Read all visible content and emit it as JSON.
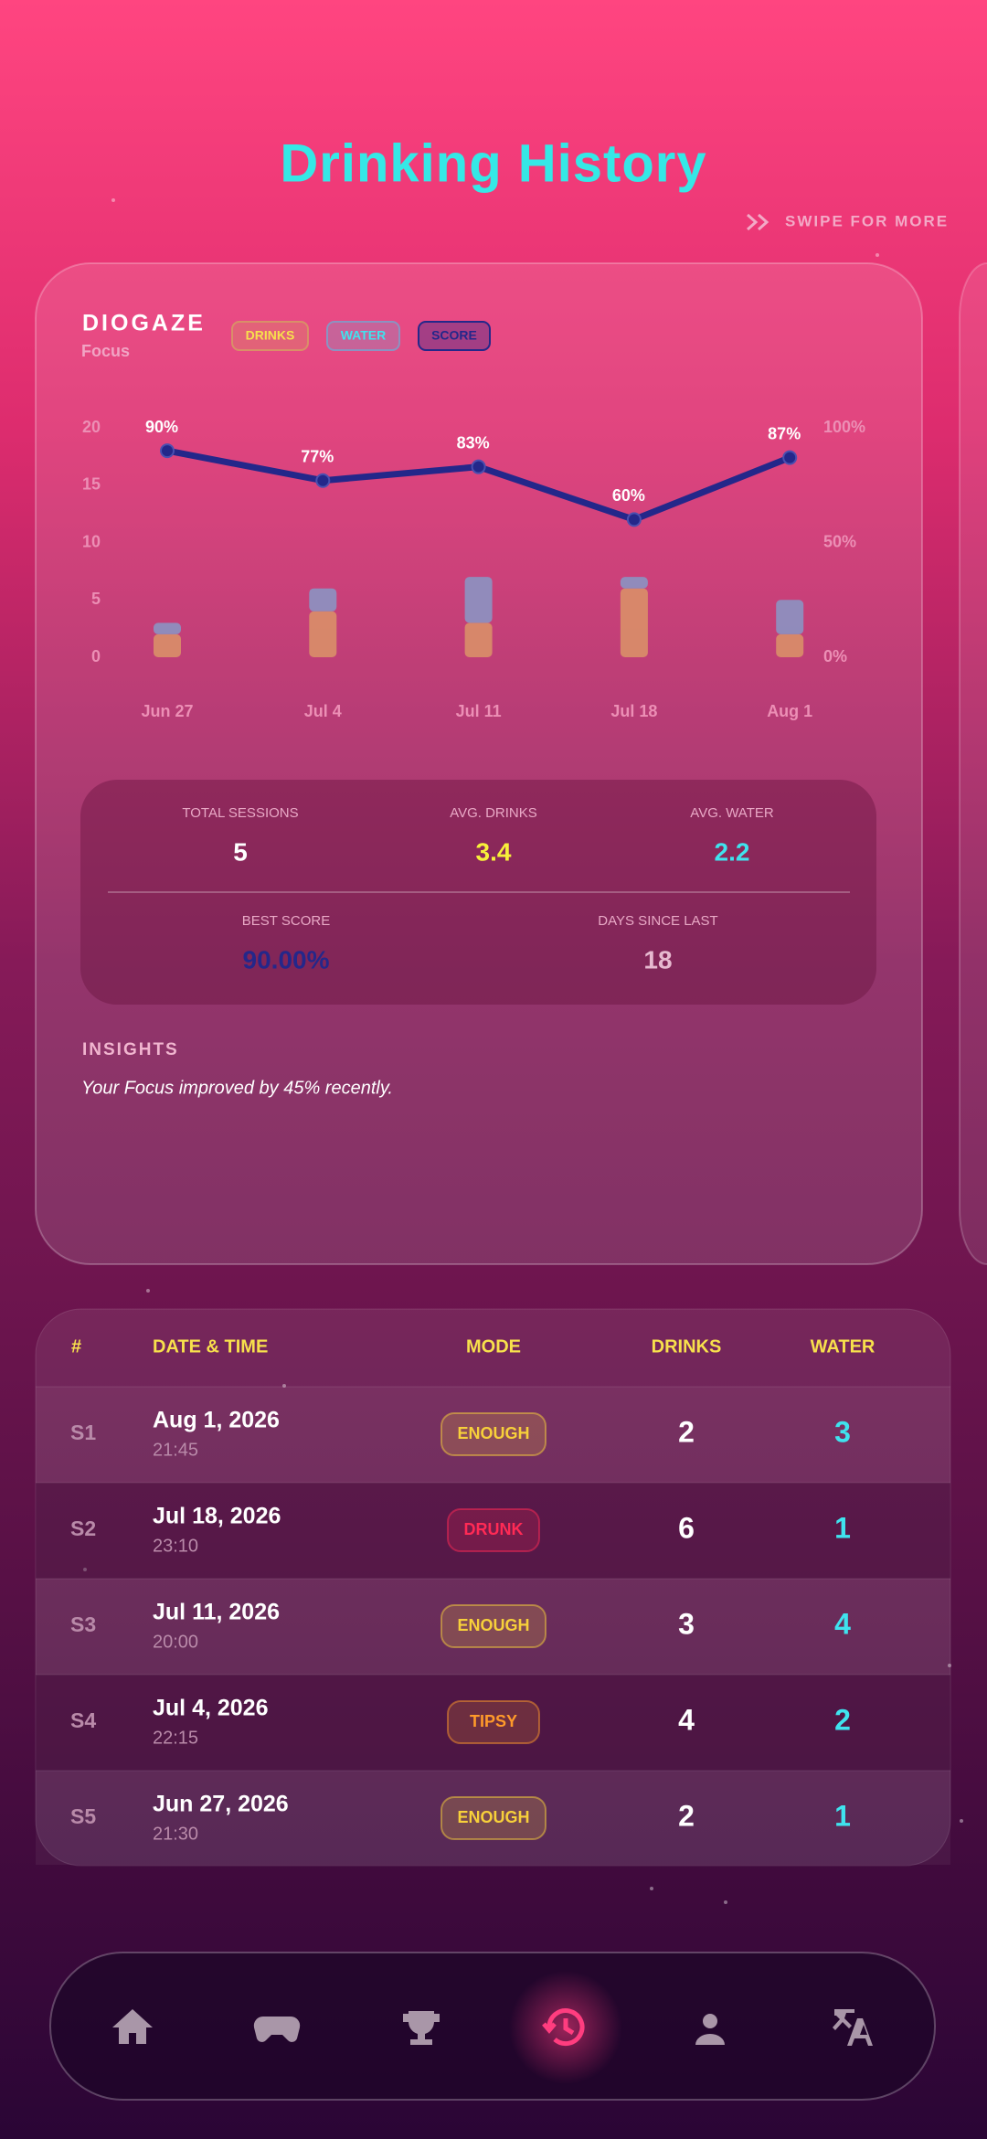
{
  "header": {
    "title": "Drinking History",
    "swipe_hint": "SWIPE FOR MORE"
  },
  "chart_data": {
    "type": "bar",
    "stacked": true,
    "title": "DIOGAZE",
    "subtitle": "Focus",
    "categories": [
      "Jun 27",
      "Jul 4",
      "Jul 11",
      "Jul 18",
      "Aug 1"
    ],
    "series": [
      {
        "name": "DRINKS",
        "color": "#d98f68",
        "values": [
          2,
          4,
          3,
          6,
          2
        ]
      },
      {
        "name": "WATER",
        "color": "#8b93c2",
        "values": [
          1,
          2,
          4,
          1,
          3
        ]
      },
      {
        "name": "SCORE",
        "color": "#24278a",
        "type": "line",
        "axis": "y2",
        "values": [
          90,
          77,
          83,
          60,
          87
        ],
        "value_labels": [
          "90%",
          "77%",
          "83%",
          "60%",
          "87%"
        ]
      }
    ],
    "ylim": [
      0,
      20
    ],
    "yticks": [
      0,
      5,
      10,
      15,
      20
    ],
    "y2lim": [
      0,
      100
    ],
    "y2ticks": [
      {
        "value": 0,
        "label": "0%"
      },
      {
        "value": 50,
        "label": "50%"
      },
      {
        "value": 100,
        "label": "100%"
      }
    ],
    "grid": false
  },
  "stats": [
    {
      "label": "TOTAL SESSIONS",
      "value": "5"
    },
    {
      "label": "AVG. DRINKS",
      "value": "3.4"
    },
    {
      "label": "AVG. WATER",
      "value": "2.2"
    },
    {
      "label": "BEST SCORE",
      "value": "90.00%"
    },
    {
      "label": "DAYS SINCE LAST",
      "value": "18"
    }
  ],
  "insights": {
    "title": "INSIGHTS",
    "text": "Your Focus improved by 45% recently."
  },
  "table": {
    "columns": [
      "#",
      "DATE & TIME",
      "MODE",
      "DRINKS",
      "WATER"
    ],
    "rows": [
      {
        "id": "S1",
        "date": "Aug 1, 2026",
        "time": "21:45",
        "mode": "ENOUGH",
        "drinks": "2",
        "water": "3"
      },
      {
        "id": "S2",
        "date": "Jul 18, 2026",
        "time": "23:10",
        "mode": "DRUNK",
        "drinks": "6",
        "water": "1"
      },
      {
        "id": "S3",
        "date": "Jul 11, 2026",
        "time": "20:00",
        "mode": "ENOUGH",
        "drinks": "3",
        "water": "4"
      },
      {
        "id": "S4",
        "date": "Jul 4, 2026",
        "time": "22:15",
        "mode": "TIPSY",
        "drinks": "4",
        "water": "2"
      },
      {
        "id": "S5",
        "date": "Jun 27, 2026",
        "time": "21:30",
        "mode": "ENOUGH",
        "drinks": "2",
        "water": "1"
      }
    ]
  }
}
